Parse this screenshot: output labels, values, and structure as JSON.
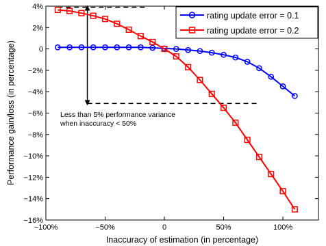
{
  "chart_data": {
    "type": "line",
    "title": "",
    "xlabel": "Inaccuracy of estimation (in percentage)",
    "ylabel": "Performance gain/loss (in percentage)",
    "xlim": [
      -100,
      130
    ],
    "ylim": [
      -16,
      4
    ],
    "xticks": [
      -100,
      -50,
      0,
      50,
      100
    ],
    "xtick_labels": [
      "−100%",
      "−50%",
      "0",
      "50%",
      "100%"
    ],
    "yticks": [
      4,
      2,
      0,
      -2,
      -4,
      -6,
      -8,
      -10,
      -12,
      -14,
      -16
    ],
    "ytick_labels": [
      "4%",
      "2%",
      "0",
      "−2%",
      "−4%",
      "−6%",
      "−8%",
      "−10%",
      "−12%",
      "−14%",
      "−16%"
    ],
    "grid": false,
    "legend_position": "top-right",
    "x": [
      -90,
      -80,
      -70,
      -60,
      -50,
      -40,
      -30,
      -20,
      -10,
      0,
      10,
      20,
      30,
      40,
      50,
      60,
      70,
      80,
      90,
      100,
      110
    ],
    "series": [
      {
        "name": "rating update error = 0.1",
        "color": "#0000ff",
        "marker": "circle",
        "values": [
          0.15,
          0.15,
          0.15,
          0.15,
          0.15,
          0.15,
          0.15,
          0.15,
          0.1,
          0.05,
          0.0,
          -0.1,
          -0.2,
          -0.35,
          -0.55,
          -0.8,
          -1.2,
          -1.8,
          -2.6,
          -3.5,
          -4.4
        ]
      },
      {
        "name": "rating update error = 0.2",
        "color": "#ff0000",
        "marker": "square",
        "values": [
          3.65,
          3.55,
          3.35,
          3.1,
          2.8,
          2.35,
          1.8,
          1.2,
          0.65,
          0.0,
          -0.7,
          -1.7,
          -2.9,
          -4.2,
          -5.5,
          -6.9,
          -8.5,
          -10.1,
          -11.7,
          -13.3,
          -15.0
        ]
      }
    ],
    "annotation": {
      "lines": [
        "Less than 5% performance variance",
        "when inaccuracy < 50%"
      ],
      "upper_dashed_y": 3.9,
      "upper_dashed_x": [
        -90,
        -15
      ],
      "lower_dashed_y": -5.1,
      "lower_dashed_x": [
        -65,
        80
      ],
      "arrow_x": -65,
      "arrow_y": [
        3.9,
        -5.1
      ]
    }
  }
}
